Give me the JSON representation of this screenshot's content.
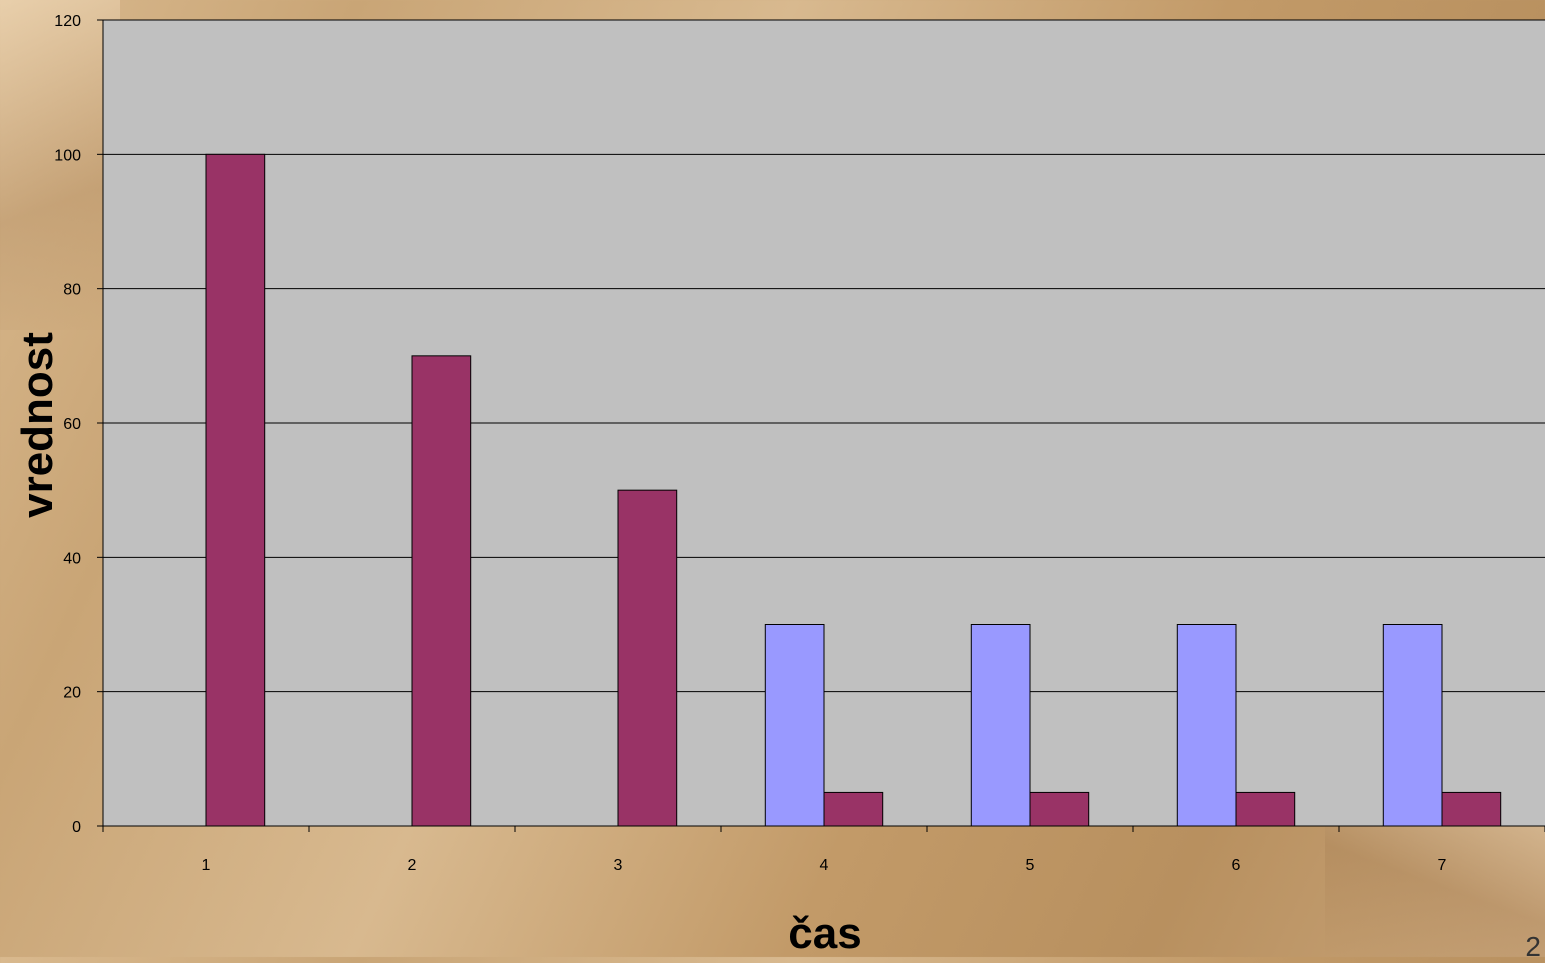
{
  "chart_data": {
    "type": "bar",
    "categories": [
      "1",
      "2",
      "3",
      "4",
      "5",
      "6",
      "7"
    ],
    "series": [
      {
        "color": "#9999ff",
        "values": [
          0,
          0,
          0,
          30,
          30,
          30,
          30
        ]
      },
      {
        "color": "#993366",
        "values": [
          100,
          70,
          50,
          5,
          5,
          5,
          5
        ]
      }
    ],
    "xlabel": "čas",
    "ylabel": "vrednost",
    "ylim": [
      0,
      120
    ],
    "yticks": [
      0,
      20,
      40,
      60,
      80,
      100,
      120
    ],
    "grid": true,
    "plot_background": "#c0c0c0"
  },
  "slide_number": "2"
}
